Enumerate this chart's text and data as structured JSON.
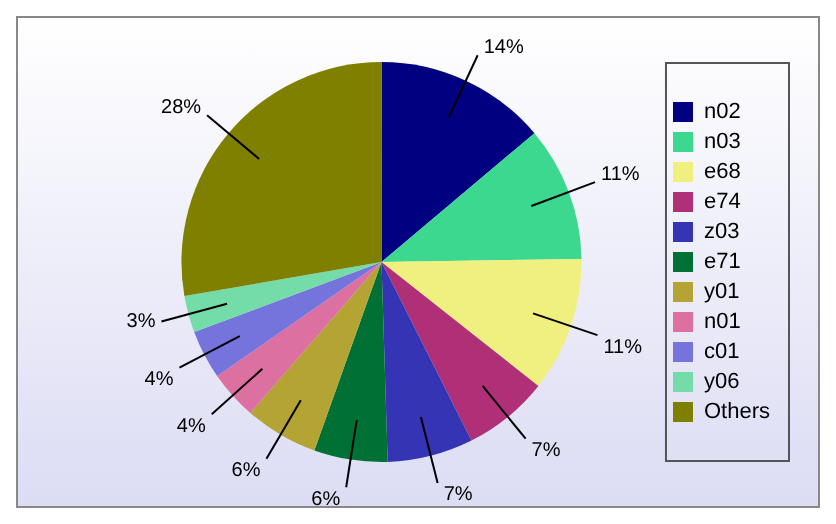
{
  "chart_data": {
    "type": "pie",
    "categories": [
      "n02",
      "n03",
      "e68",
      "e74",
      "z03",
      "e71",
      "y01",
      "n01",
      "c01",
      "y06",
      "Others"
    ],
    "values": [
      14,
      11,
      11,
      7,
      7,
      6,
      6,
      4,
      4,
      3,
      28
    ],
    "colors": [
      "#000080",
      "#3cd890",
      "#f0f080",
      "#b03078",
      "#3434b4",
      "#007034",
      "#b4a434",
      "#dc70a0",
      "#7474dc",
      "#74dca8",
      "#808000"
    ],
    "value_labels": [
      "14%",
      "11%",
      "11%",
      "7%",
      "7%",
      "6%",
      "6%",
      "4%",
      "4%",
      "3%",
      "28%"
    ],
    "legend": "right"
  }
}
